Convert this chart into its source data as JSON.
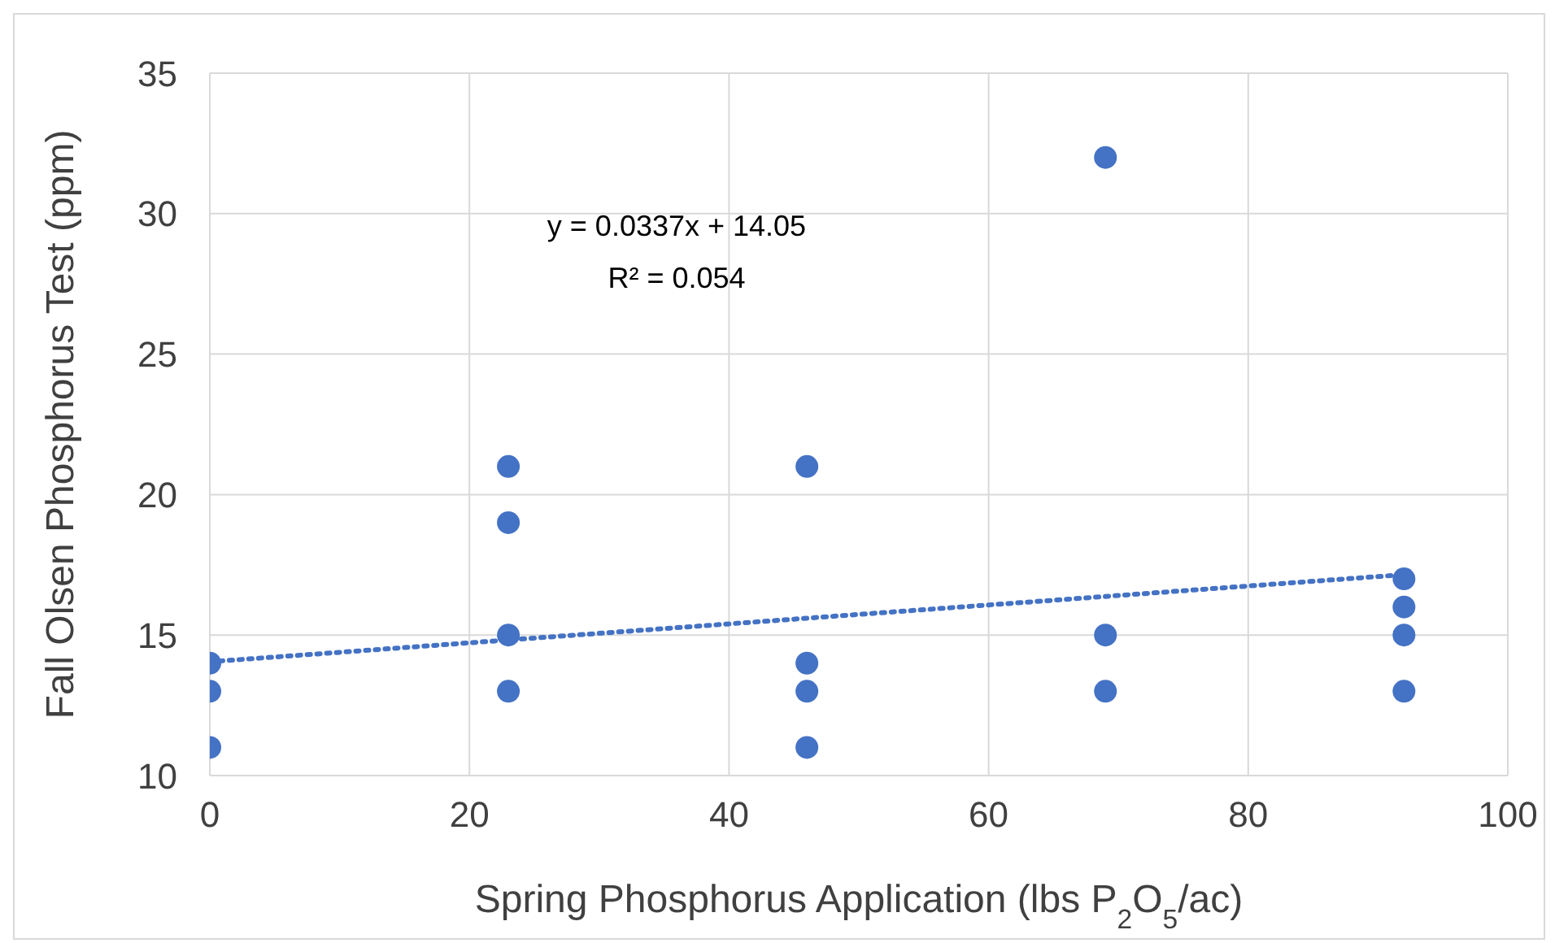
{
  "chart_data": {
    "type": "scatter",
    "xlabel": "Spring Phosphorus Application (lbs P$_{2}$O$_{5}$/ac)",
    "ylabel": "Fall Olsen Phosphorus Test (ppm)",
    "annotations": [
      "y = 0.0337x + 14.05",
      "R² = 0.054"
    ],
    "series": [
      {
        "color": "#4472c4",
        "x": [
          0,
          0,
          0,
          23,
          23,
          23,
          23,
          46,
          46,
          46,
          46,
          69,
          69,
          69,
          92,
          92,
          92,
          92
        ],
        "values": [
          14,
          13,
          11,
          21,
          19,
          15,
          13,
          21,
          14,
          13,
          11,
          32,
          15,
          13,
          17,
          16,
          15,
          13
        ],
        "marker": "circle"
      },
      {
        "type": "line",
        "color": "#4472c4",
        "x": [
          0,
          92
        ],
        "values": [
          14.05,
          17.15
        ],
        "line_style": "dotted",
        "marker": "none"
      }
    ],
    "xlim": [
      0,
      100
    ],
    "xticks": [
      0,
      20,
      40,
      60,
      80,
      100
    ],
    "ylim": [
      10,
      35
    ],
    "yticks": [
      10,
      15,
      20,
      25,
      30,
      35
    ],
    "grid": true
  }
}
